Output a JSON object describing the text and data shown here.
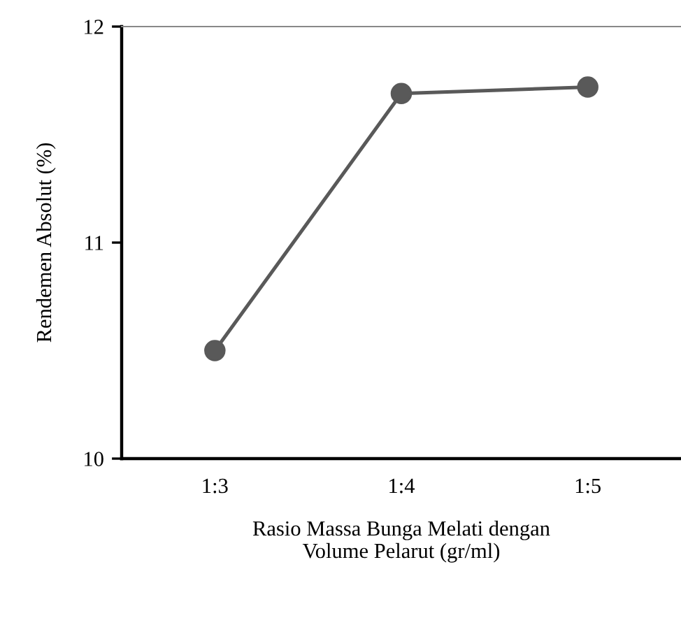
{
  "chart_data": {
    "type": "line",
    "xlabel": "Rasio Massa Bunga Melati dengan\nVolume Pelarut (gr/ml)",
    "ylabel": "Rendemen Absolut (%)",
    "categories": [
      "1:3",
      "1:4",
      "1:5"
    ],
    "series": [
      {
        "color": "#595959",
        "values": [
          10.5,
          11.69,
          11.72
        ]
      }
    ],
    "ylim": [
      10,
      12
    ],
    "yticks": [
      10,
      11,
      12
    ],
    "marker": "circle",
    "line_style": "solid",
    "grid": false,
    "legend": false
  }
}
